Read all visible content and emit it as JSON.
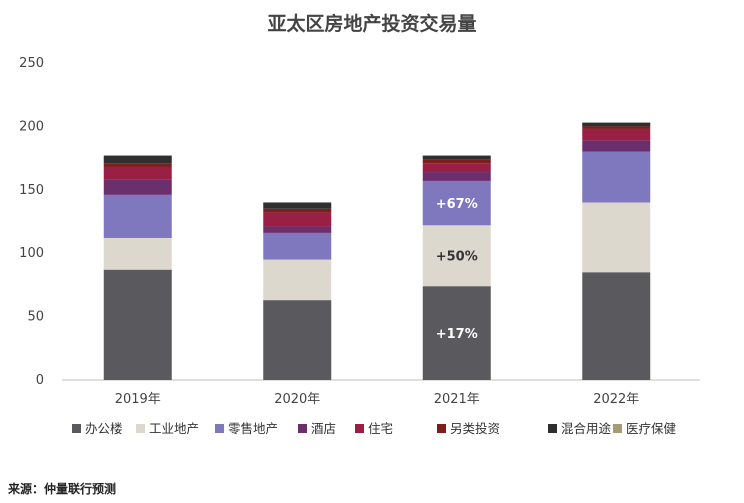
{
  "chart_data": {
    "type": "bar",
    "stacked": true,
    "title": "亚太区房地产投资交易量",
    "categories": [
      "2019年",
      "2020年",
      "2021年",
      "2022年"
    ],
    "ylim": [
      0,
      250
    ],
    "yticks": [
      0,
      50,
      100,
      150,
      200,
      250
    ],
    "grid": false,
    "legend_position": "bottom",
    "series": [
      {
        "name": "办公楼",
        "color": "#5a5a5e",
        "values": [
          87,
          63,
          74,
          85
        ]
      },
      {
        "name": "工业地产",
        "color": "#ddd8ce",
        "values": [
          25,
          32,
          48,
          55
        ]
      },
      {
        "name": "零售地产",
        "color": "#7f78bf",
        "values": [
          34,
          21,
          35,
          40
        ]
      },
      {
        "name": "酒店",
        "color": "#6b2f6e",
        "values": [
          12,
          5,
          7,
          9
        ]
      },
      {
        "name": "住宅",
        "color": "#9a1f45",
        "values": [
          10,
          11,
          7,
          9
        ]
      },
      {
        "name": "另类投资",
        "color": "#7d1d1d",
        "values": [
          3,
          3,
          3,
          2
        ]
      },
      {
        "name": "混合用途",
        "color": "#2f2f2f",
        "values": [
          6,
          5,
          3,
          3
        ]
      },
      {
        "name": "医疗保健",
        "color": "#a89a74",
        "values": [
          0,
          0,
          0,
          0
        ]
      }
    ],
    "annotations": [
      {
        "category": "2021年",
        "series": "办公楼",
        "text": "+17%",
        "color": "#ffffff"
      },
      {
        "category": "2021年",
        "series": "工业地产",
        "text": "+50%",
        "color": "#333333"
      },
      {
        "category": "2021年",
        "series": "零售地产",
        "text": "+67%",
        "color": "#ffffff"
      }
    ]
  },
  "source_note": "来源：仲量联行预测"
}
